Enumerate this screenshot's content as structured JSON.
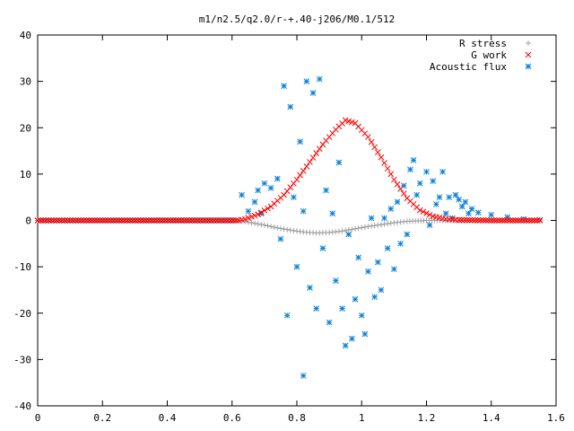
{
  "chart_data": {
    "type": "scatter",
    "title": "m1/n2.5/q2.0/r-+.40-j206/M0.1/512",
    "xlabel": "",
    "ylabel": "",
    "xlim": [
      0,
      1.6
    ],
    "ylim": [
      -40,
      40
    ],
    "x_ticks": [
      "0",
      "0.2",
      "0.4",
      "0.6",
      "0.8",
      "1",
      "1.2",
      "1.4",
      "1.6"
    ],
    "y_ticks": [
      "40",
      "30",
      "20",
      "10",
      "0",
      "-10",
      "-20",
      "-30",
      "-40"
    ],
    "grid": false,
    "legend_position": "top-right",
    "series": [
      {
        "name": "R stress",
        "marker": "+",
        "color": "#a0a0a0",
        "points": [
          [
            0.0,
            0
          ],
          [
            0.62,
            0
          ],
          [
            0.66,
            -0.5
          ],
          [
            0.7,
            -1.0
          ],
          [
            0.74,
            -1.6
          ],
          [
            0.78,
            -2.1
          ],
          [
            0.82,
            -2.5
          ],
          [
            0.86,
            -2.7
          ],
          [
            0.9,
            -2.6
          ],
          [
            0.94,
            -2.3
          ],
          [
            0.98,
            -1.8
          ],
          [
            1.02,
            -1.3
          ],
          [
            1.06,
            -0.9
          ],
          [
            1.1,
            -0.5
          ],
          [
            1.14,
            -0.2
          ],
          [
            1.2,
            0
          ],
          [
            1.3,
            0
          ],
          [
            1.4,
            0
          ],
          [
            1.5,
            0
          ],
          [
            1.55,
            0
          ]
        ]
      },
      {
        "name": "G work",
        "marker": "x",
        "color": "#ff0000",
        "points": [
          [
            0.0,
            0
          ],
          [
            0.62,
            0
          ],
          [
            0.64,
            0.3
          ],
          [
            0.68,
            1.3
          ],
          [
            0.72,
            3.0
          ],
          [
            0.76,
            5.5
          ],
          [
            0.8,
            8.8
          ],
          [
            0.84,
            12.6
          ],
          [
            0.88,
            16.4
          ],
          [
            0.92,
            19.6
          ],
          [
            0.95,
            21.6
          ],
          [
            0.98,
            21.0
          ],
          [
            1.02,
            18.0
          ],
          [
            1.06,
            13.6
          ],
          [
            1.1,
            8.8
          ],
          [
            1.14,
            4.8
          ],
          [
            1.18,
            2.2
          ],
          [
            1.22,
            0.9
          ],
          [
            1.26,
            0.3
          ],
          [
            1.3,
            0.1
          ],
          [
            1.4,
            0
          ],
          [
            1.5,
            0
          ],
          [
            1.55,
            0
          ]
        ]
      },
      {
        "name": "Acoustic flux",
        "marker": "*",
        "color": "#0a7fd8",
        "points": [
          [
            0.0,
            0
          ],
          [
            0.2,
            0
          ],
          [
            0.4,
            0
          ],
          [
            0.6,
            0
          ],
          [
            0.63,
            5.5
          ],
          [
            0.65,
            2.0
          ],
          [
            0.67,
            4.0
          ],
          [
            0.68,
            6.5
          ],
          [
            0.69,
            1.5
          ],
          [
            0.7,
            8.0
          ],
          [
            0.72,
            7.0
          ],
          [
            0.74,
            9.0
          ],
          [
            0.75,
            -4.0
          ],
          [
            0.76,
            29.0
          ],
          [
            0.77,
            -20.5
          ],
          [
            0.78,
            24.5
          ],
          [
            0.79,
            5.0
          ],
          [
            0.8,
            -10.0
          ],
          [
            0.81,
            17.0
          ],
          [
            0.82,
            -33.5
          ],
          [
            0.82,
            2.0
          ],
          [
            0.83,
            30.0
          ],
          [
            0.84,
            -14.5
          ],
          [
            0.85,
            27.5
          ],
          [
            0.86,
            -19.0
          ],
          [
            0.87,
            30.5
          ],
          [
            0.88,
            -6.0
          ],
          [
            0.89,
            6.5
          ],
          [
            0.9,
            -22.0
          ],
          [
            0.91,
            1.5
          ],
          [
            0.92,
            -13.0
          ],
          [
            0.93,
            12.5
          ],
          [
            0.94,
            -19.0
          ],
          [
            0.95,
            -27.0
          ],
          [
            0.96,
            -3.0
          ],
          [
            0.97,
            -25.5
          ],
          [
            0.98,
            -17.0
          ],
          [
            0.99,
            -8.0
          ],
          [
            1.0,
            -20.5
          ],
          [
            1.01,
            -24.5
          ],
          [
            1.02,
            -11.0
          ],
          [
            1.03,
            0.5
          ],
          [
            1.04,
            -16.5
          ],
          [
            1.05,
            -9.0
          ],
          [
            1.06,
            -15.0
          ],
          [
            1.07,
            0.5
          ],
          [
            1.08,
            -6.0
          ],
          [
            1.09,
            2.5
          ],
          [
            1.1,
            -10.5
          ],
          [
            1.11,
            4.0
          ],
          [
            1.12,
            -5.0
          ],
          [
            1.13,
            7.5
          ],
          [
            1.14,
            -3.0
          ],
          [
            1.15,
            11.0
          ],
          [
            1.16,
            13.0
          ],
          [
            1.17,
            5.5
          ],
          [
            1.18,
            8.0
          ],
          [
            1.2,
            10.5
          ],
          [
            1.21,
            -1.0
          ],
          [
            1.22,
            8.5
          ],
          [
            1.23,
            3.5
          ],
          [
            1.24,
            5.0
          ],
          [
            1.25,
            10.5
          ],
          [
            1.26,
            1.5
          ],
          [
            1.27,
            5.0
          ],
          [
            1.28,
            0.5
          ],
          [
            1.29,
            5.5
          ],
          [
            1.3,
            4.5
          ],
          [
            1.31,
            3.0
          ],
          [
            1.32,
            4.0
          ],
          [
            1.33,
            1.5
          ],
          [
            1.34,
            2.5
          ],
          [
            1.36,
            1.7
          ],
          [
            1.4,
            1.2
          ],
          [
            1.45,
            0.7
          ],
          [
            1.5,
            0.3
          ],
          [
            1.55,
            0.1
          ]
        ]
      }
    ]
  }
}
